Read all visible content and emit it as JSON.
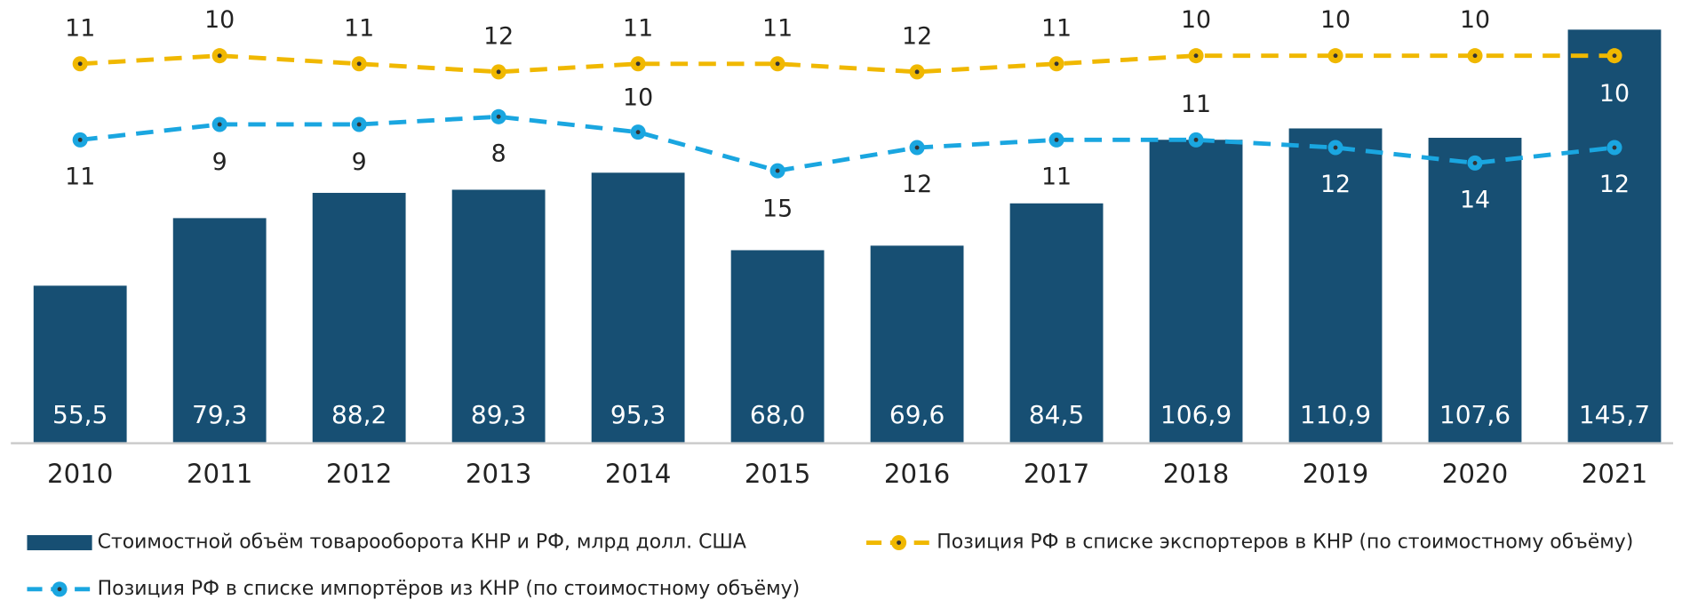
{
  "chart_data": {
    "type": "bar",
    "categories": [
      "2010",
      "2011",
      "2012",
      "2013",
      "2014",
      "2015",
      "2016",
      "2017",
      "2018",
      "2019",
      "2020",
      "2021"
    ],
    "series": [
      {
        "name": "Стоимостной объём товарооборота КНР и РФ, млрд долл. США",
        "color": "#174f73",
        "type": "bar",
        "values": [
          55.5,
          79.3,
          88.2,
          89.3,
          95.3,
          68.0,
          69.6,
          84.5,
          106.9,
          110.9,
          107.6,
          145.7
        ],
        "value_labels": [
          "55,5",
          "79,3",
          "88,2",
          "89,3",
          "95,3",
          "68,0",
          "69,6",
          "84,5",
          "106,9",
          "110,9",
          "107,6",
          "145,7"
        ]
      },
      {
        "name": "Позиция РФ в списке экспортеров в КНР (по стоимостному объёму)",
        "color": "#f0b800",
        "type": "line",
        "axis": "y2",
        "values": [
          11,
          10,
          11,
          12,
          11,
          11,
          12,
          11,
          10,
          10,
          10,
          10
        ]
      },
      {
        "name": "Позиция РФ в списке импортёров из КНР (по стоимостному объёму)",
        "color": "#1aa6e0",
        "type": "line",
        "axis": "y3",
        "values": [
          11,
          9,
          9,
          8,
          10,
          15,
          12,
          11,
          11,
          12,
          14,
          12
        ]
      }
    ],
    "ylim": [
      0,
      155
    ],
    "y2lim": [
      58,
      3.5
    ],
    "y3lim": [
      50.3,
      -6.7
    ]
  }
}
